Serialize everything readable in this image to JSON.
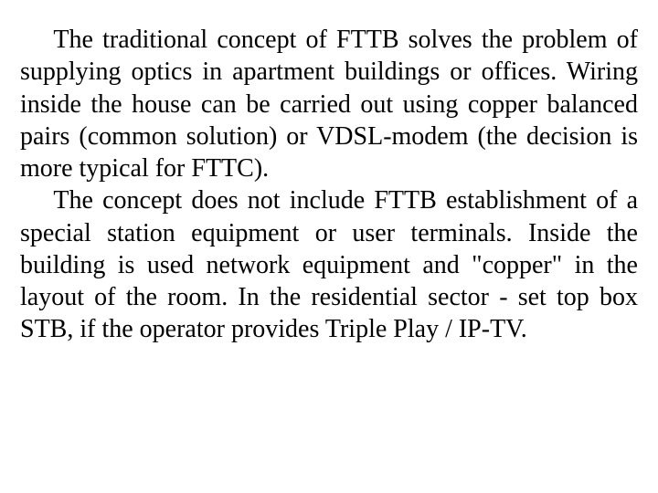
{
  "document": {
    "font_family": "Times New Roman",
    "font_size_pt": 21,
    "text_color": "#000000",
    "background_color": "#ffffff",
    "text_align": "justify",
    "text_indent_em": 1.3,
    "line_height": 1.26,
    "paragraphs": [
      "The traditional concept of FTTB solves the problem of supplying optics in apartment buildings or offices. Wiring inside the house can be carried out using copper balanced pairs (common solution) or VDSL-modem (the decision is more typical for FTTC).",
      "The concept does not include FTTB establishment of a special station equipment or user terminals. Inside the building is used network equipment and \"copper\" in the layout of the room. In the residential sector - set top box STB, if the operator provides Triple Play / IP-TV."
    ]
  }
}
